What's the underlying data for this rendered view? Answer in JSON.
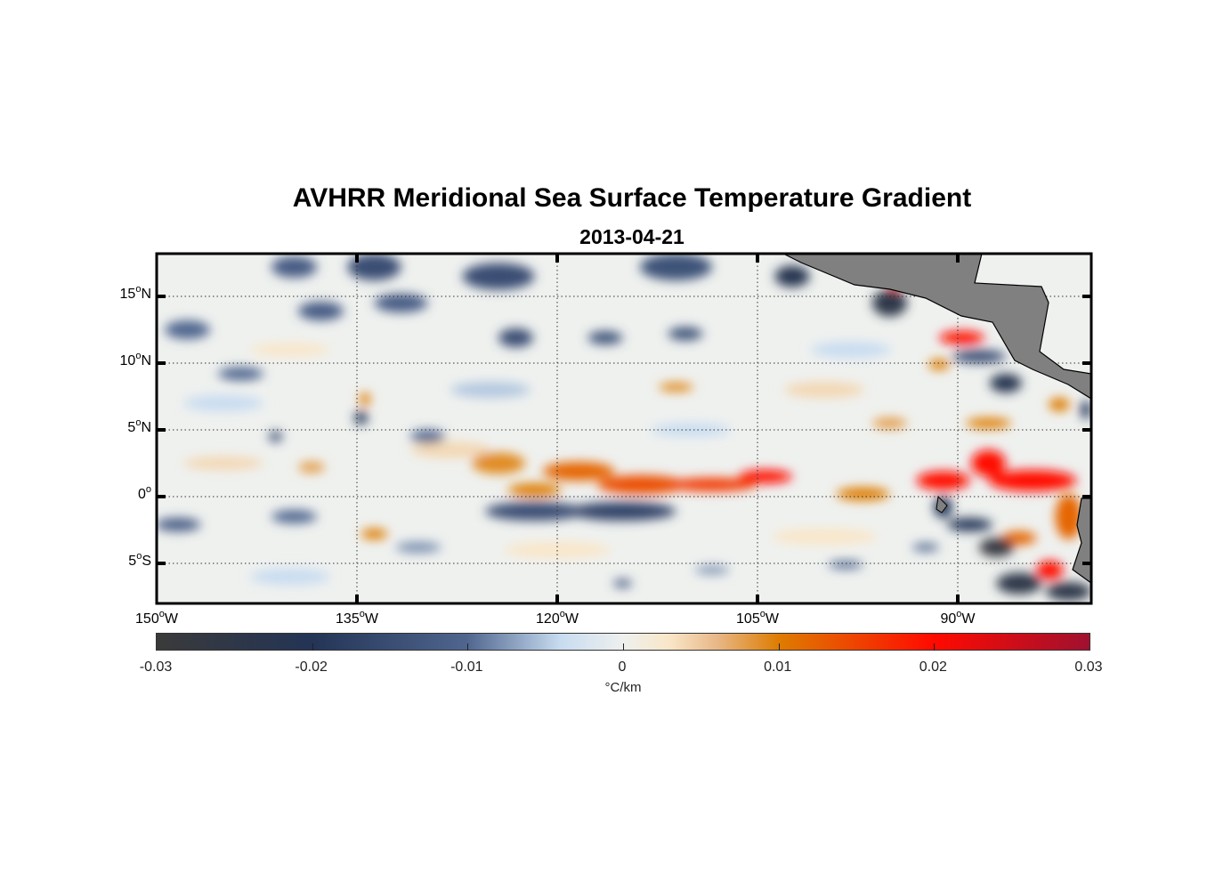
{
  "title": "AVHRR Meridional Sea Surface Temperature Gradient",
  "subtitle": "2013-04-21",
  "chart_data": {
    "type": "heatmap",
    "title": "AVHRR Meridional Sea Surface Temperature Gradient",
    "subtitle": "2013-04-21",
    "xlim": [
      -150,
      -80
    ],
    "ylim": [
      -8,
      18.2
    ],
    "lat_ticks": [
      {
        "value": 15,
        "num": "15",
        "hemi": "N"
      },
      {
        "value": 10,
        "num": "10",
        "hemi": "N"
      },
      {
        "value": 5,
        "num": "5",
        "hemi": "N"
      },
      {
        "value": 0,
        "num": "0",
        "hemi": ""
      },
      {
        "value": -5,
        "num": "5",
        "hemi": "S"
      }
    ],
    "lon_ticks": [
      {
        "value": -150,
        "num": "150",
        "hemi": "W"
      },
      {
        "value": -135,
        "num": "135",
        "hemi": "W"
      },
      {
        "value": -120,
        "num": "120",
        "hemi": "W"
      },
      {
        "value": -105,
        "num": "105",
        "hemi": "W"
      },
      {
        "value": -90,
        "num": "90",
        "hemi": "W"
      }
    ],
    "grid": true,
    "colorbar": {
      "range": [
        -0.03,
        0.03
      ],
      "ticks": [
        "-0.03",
        "-0.02",
        "-0.01",
        "0",
        "0.01",
        "0.02",
        "0.03"
      ],
      "label": "°C/km",
      "placement": "bottom"
    },
    "features": [
      [
        -118.4,
        1.9,
        2.7,
        0.7,
        0.012
      ],
      [
        -113.7,
        0.9,
        3.3,
        0.7,
        0.014
      ],
      [
        -108.4,
        0.9,
        3.3,
        0.5,
        0.016
      ],
      [
        -104.4,
        1.5,
        2,
        0.5,
        0.02
      ],
      [
        -124.4,
        2.5,
        2,
        0.8,
        0.009
      ],
      [
        -121.7,
        0.5,
        2,
        0.5,
        0.01
      ],
      [
        -97.1,
        0.2,
        2,
        0.5,
        0.01
      ],
      [
        -91.1,
        1.2,
        2,
        0.7,
        0.02
      ],
      [
        -87.7,
        2.5,
        1.3,
        1,
        0.02
      ],
      [
        -84.4,
        1.2,
        3.3,
        0.8,
        0.02
      ],
      [
        -81.7,
        -1.5,
        1,
        1.7,
        0.012
      ],
      [
        -83.1,
        -5.5,
        1,
        0.7,
        0.02
      ],
      [
        -85.4,
        -3.1,
        1.3,
        0.5,
        0.012
      ],
      [
        -89.7,
        11.9,
        1.7,
        0.5,
        0.02
      ],
      [
        -91.4,
        9.9,
        0.8,
        0.4,
        0.01
      ],
      [
        -82.4,
        6.9,
        0.8,
        0.5,
        0.01
      ],
      [
        -111.1,
        8.2,
        1.3,
        0.3,
        0.01
      ],
      [
        -134.4,
        7.3,
        0.4,
        0.5,
        0.01
      ],
      [
        -133.7,
        -2.8,
        1,
        0.4,
        0.01
      ],
      [
        -138.4,
        2.2,
        1,
        0.4,
        0.008
      ],
      [
        -95.1,
        5.5,
        1.3,
        0.4,
        0.008
      ],
      [
        -87.7,
        5.5,
        1.7,
        0.4,
        0.01
      ],
      [
        -94.7,
        15.7,
        0.4,
        0.3,
        0.02
      ],
      [
        -145,
        2.5,
        3,
        0.5,
        0.004
      ],
      [
        -128,
        3.5,
        3,
        0.6,
        0.004
      ],
      [
        -100,
        8,
        3,
        0.6,
        0.004
      ],
      [
        -140,
        11,
        3,
        0.5,
        0.003
      ],
      [
        -120,
        -4,
        4,
        0.6,
        0.003
      ],
      [
        -100,
        -3,
        4,
        0.6,
        0.003
      ],
      [
        -121.7,
        -1.1,
        3.7,
        0.7,
        -0.015
      ],
      [
        -115.1,
        -1.1,
        4,
        0.7,
        -0.017
      ],
      [
        -124.4,
        16.5,
        2.7,
        1,
        -0.015
      ],
      [
        -133.7,
        17.2,
        2,
        1,
        -0.015
      ],
      [
        -139.7,
        17.2,
        1.7,
        0.8,
        -0.012
      ],
      [
        -111.1,
        17.2,
        2.7,
        1,
        -0.014
      ],
      [
        -95.1,
        14.5,
        1.3,
        1,
        -0.025
      ],
      [
        -102.4,
        16.5,
        1.3,
        0.8,
        -0.022
      ],
      [
        -86.4,
        8.5,
        1.2,
        0.7,
        -0.022
      ],
      [
        -88.4,
        10.5,
        2,
        0.5,
        -0.015
      ],
      [
        -91.1,
        -0.8,
        0.7,
        0.8,
        -0.02
      ],
      [
        -89.1,
        -2.1,
        1.7,
        0.5,
        -0.02
      ],
      [
        -87.1,
        -3.8,
        1.3,
        0.7,
        -0.028
      ],
      [
        -85.4,
        -6.5,
        1.7,
        0.8,
        -0.025
      ],
      [
        -81.7,
        -7.1,
        1.7,
        0.7,
        -0.025
      ],
      [
        -148.4,
        -2.1,
        1.7,
        0.5,
        -0.012
      ],
      [
        -147.7,
        12.5,
        1.7,
        0.7,
        -0.01
      ],
      [
        -143.7,
        9.2,
        1.7,
        0.5,
        -0.01
      ],
      [
        -134.7,
        5.9,
        0.5,
        0.5,
        -0.02
      ],
      [
        -141.1,
        4.5,
        0.5,
        0.4,
        -0.015
      ],
      [
        -123.1,
        11.9,
        1.3,
        0.7,
        -0.015
      ],
      [
        -116.4,
        11.9,
        1.3,
        0.5,
        -0.014
      ],
      [
        -110.4,
        12.2,
        1.3,
        0.5,
        -0.014
      ],
      [
        -131.7,
        14.5,
        2,
        0.7,
        -0.012
      ],
      [
        -137.7,
        13.9,
        1.7,
        0.7,
        -0.012
      ],
      [
        -129.7,
        4.5,
        1.3,
        0.5,
        -0.01
      ],
      [
        -115.1,
        -6.5,
        0.7,
        0.3,
        -0.013
      ],
      [
        -98.4,
        -5.1,
        1.3,
        0.3,
        -0.01
      ],
      [
        -108.4,
        -5.5,
        1.3,
        0.3,
        -0.008
      ],
      [
        -130.4,
        -3.8,
        1.7,
        0.4,
        -0.008
      ],
      [
        -139.7,
        -1.5,
        1.7,
        0.5,
        -0.01
      ],
      [
        -92.4,
        -3.8,
        1,
        0.3,
        -0.01
      ],
      [
        -80.4,
        6.5,
        0.4,
        0.7,
        -0.02
      ],
      [
        -145,
        7,
        3,
        0.6,
        -0.004
      ],
      [
        -125,
        8,
        3,
        0.6,
        -0.005
      ],
      [
        -110,
        5,
        3,
        0.5,
        -0.004
      ],
      [
        -140,
        -6,
        3,
        0.6,
        -0.004
      ],
      [
        -98,
        11,
        3,
        0.6,
        -0.004
      ]
    ]
  }
}
